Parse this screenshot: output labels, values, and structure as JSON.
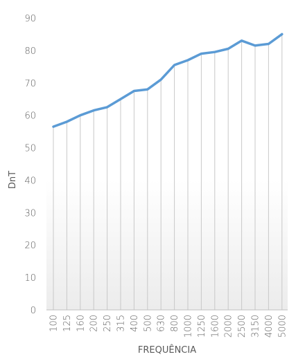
{
  "chart_data": {
    "type": "line",
    "title": "",
    "xlabel": "FREQUÊNCIA",
    "ylabel": "DnT",
    "categories": [
      "100",
      "125",
      "160",
      "200",
      "250",
      "315",
      "400",
      "500",
      "630",
      "800",
      "1000",
      "1250",
      "1600",
      "2000",
      "2500",
      "3150",
      "4000",
      "5000"
    ],
    "series": [
      {
        "values": [
          56.5,
          58,
          60,
          61.5,
          62.5,
          65,
          67.5,
          68,
          71,
          75.5,
          77,
          79,
          79.5,
          80.5,
          83,
          81.5,
          82,
          85
        ]
      }
    ],
    "ylim": [
      0,
      90
    ],
    "yticks": [
      0,
      10,
      20,
      30,
      40,
      50,
      60,
      70,
      80,
      90
    ],
    "grid": "vertical drop lines",
    "legend": "none",
    "colors": {
      "line": "#5b9bd5",
      "drop": "#c8c8c8",
      "axis": "#bfbfbf",
      "text": "#595959"
    }
  }
}
